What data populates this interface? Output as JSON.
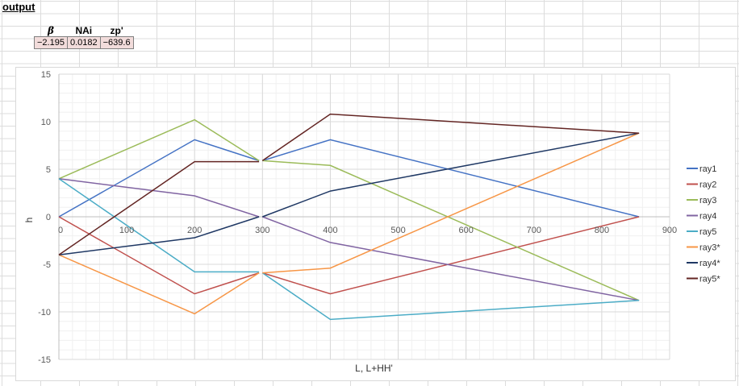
{
  "sheet": {
    "title": "output"
  },
  "params": {
    "headers": [
      "β",
      "NAi",
      "zp'"
    ],
    "values": [
      "−2.195",
      "0.0182",
      "−639.6"
    ]
  },
  "chart_data": {
    "type": "line",
    "title": "",
    "xlabel": "L, L+HH'",
    "ylabel": "h",
    "xlim": [
      0,
      900
    ],
    "ylim": [
      -15,
      15
    ],
    "xticks": [
      0,
      100,
      200,
      300,
      400,
      500,
      600,
      700,
      800,
      900
    ],
    "yticks": [
      15,
      10,
      5,
      0,
      -5,
      -10,
      -15
    ],
    "grid": true,
    "legend_position": "right",
    "series": [
      {
        "name": "ray1",
        "color": "#4472c4",
        "segments": [
          [
            [
              0,
              0
            ],
            [
              200,
              8.1
            ],
            [
              295,
              5.9
            ]
          ],
          [
            [
              300,
              5.9
            ],
            [
              400,
              8.1
            ],
            [
              855,
              0
            ]
          ]
        ]
      },
      {
        "name": "ray2",
        "color": "#c0504d",
        "segments": [
          [
            [
              0,
              0
            ],
            [
              200,
              -8.1
            ],
            [
              295,
              -5.9
            ]
          ],
          [
            [
              300,
              -5.9
            ],
            [
              400,
              -8.1
            ],
            [
              855,
              0
            ]
          ]
        ]
      },
      {
        "name": "ray3",
        "color": "#9bbb59",
        "segments": [
          [
            [
              0,
              4
            ],
            [
              200,
              10.2
            ],
            [
              295,
              5.9
            ]
          ],
          [
            [
              300,
              5.9
            ],
            [
              400,
              5.4
            ],
            [
              855,
              -8.8
            ]
          ]
        ]
      },
      {
        "name": "ray4",
        "color": "#8064a2",
        "segments": [
          [
            [
              0,
              4
            ],
            [
              200,
              2.2
            ],
            [
              295,
              0
            ]
          ],
          [
            [
              300,
              0
            ],
            [
              400,
              -2.7
            ],
            [
              855,
              -8.8
            ]
          ]
        ]
      },
      {
        "name": "ray5",
        "color": "#4bacc6",
        "segments": [
          [
            [
              0,
              4
            ],
            [
              200,
              -5.8
            ],
            [
              295,
              -5.8
            ]
          ],
          [
            [
              300,
              -5.9
            ],
            [
              400,
              -10.8
            ],
            [
              855,
              -8.8
            ]
          ]
        ]
      },
      {
        "name": "ray3*",
        "color": "#f79646",
        "segments": [
          [
            [
              0,
              -4
            ],
            [
              200,
              -10.2
            ],
            [
              295,
              -5.9
            ]
          ],
          [
            [
              300,
              -5.9
            ],
            [
              400,
              -5.4
            ],
            [
              855,
              8.8
            ]
          ]
        ]
      },
      {
        "name": "ray4*",
        "color": "#1f3864",
        "segments": [
          [
            [
              0,
              -4
            ],
            [
              200,
              -2.2
            ],
            [
              295,
              0
            ]
          ],
          [
            [
              300,
              0
            ],
            [
              400,
              2.7
            ],
            [
              855,
              8.8
            ]
          ]
        ]
      },
      {
        "name": "ray5*",
        "color": "#632523",
        "segments": [
          [
            [
              0,
              -4
            ],
            [
              200,
              5.8
            ],
            [
              295,
              5.8
            ]
          ],
          [
            [
              300,
              5.9
            ],
            [
              400,
              10.8
            ],
            [
              855,
              8.8
            ]
          ]
        ]
      }
    ]
  }
}
